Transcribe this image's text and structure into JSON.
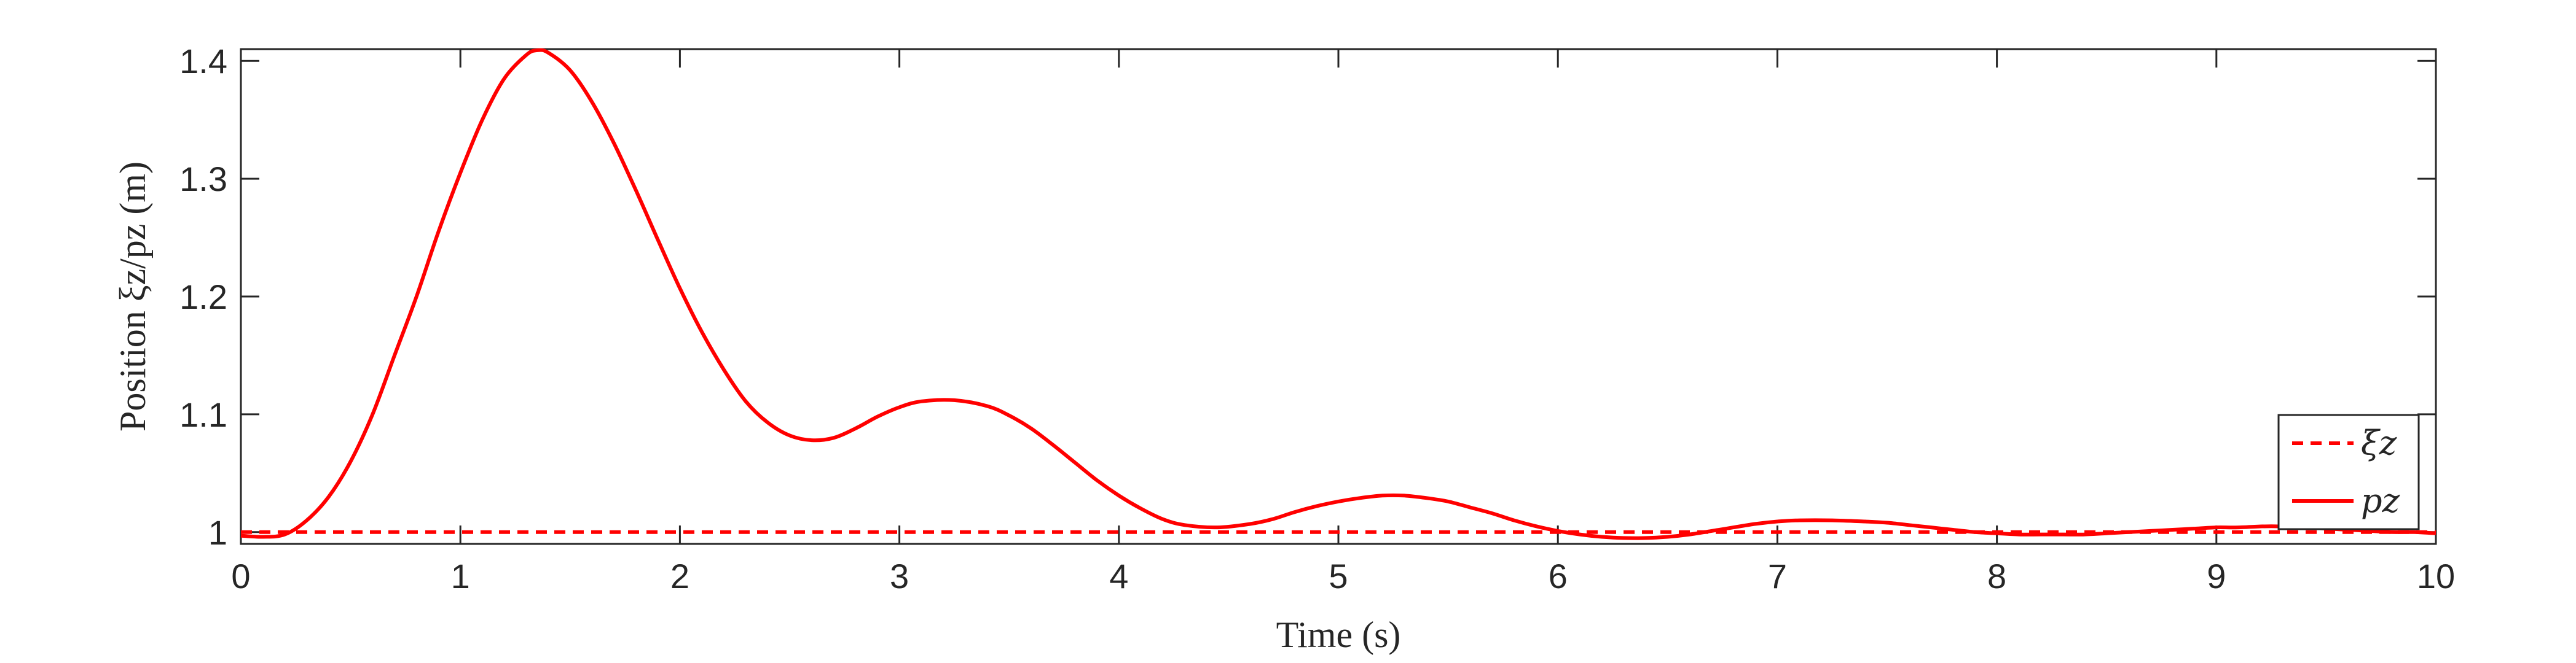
{
  "chart_data": {
    "type": "line",
    "xlabel": "Time (s)",
    "ylabel": "Position ξz/pz (m)",
    "xlim": [
      0,
      10
    ],
    "ylim": [
      0.99,
      1.41
    ],
    "xticks": [
      "0",
      "1",
      "2",
      "3",
      "4",
      "5",
      "6",
      "7",
      "8",
      "9",
      "10"
    ],
    "yticks": [
      "1",
      "1.1",
      "1.2",
      "1.3",
      "1.4"
    ],
    "grid": false,
    "legend_position": "bottom-right",
    "series": [
      {
        "name": "ξz",
        "style": "dashed",
        "color": "#ff0000",
        "x": [
          0,
          10
        ],
        "y": [
          1.0,
          1.0
        ]
      },
      {
        "name": "pz",
        "style": "solid",
        "color": "#ff0000",
        "x": [
          0,
          0.1,
          0.2,
          0.3,
          0.4,
          0.5,
          0.6,
          0.7,
          0.8,
          0.9,
          1.0,
          1.1,
          1.2,
          1.3,
          1.35,
          1.4,
          1.5,
          1.6,
          1.7,
          1.8,
          1.9,
          2.0,
          2.1,
          2.2,
          2.3,
          2.4,
          2.5,
          2.6,
          2.7,
          2.8,
          2.9,
          3.0,
          3.1,
          3.25,
          3.4,
          3.5,
          3.6,
          3.7,
          3.8,
          3.9,
          4.0,
          4.1,
          4.2,
          4.3,
          4.45,
          4.6,
          4.7,
          4.8,
          4.9,
          5.0,
          5.1,
          5.2,
          5.3,
          5.4,
          5.5,
          5.6,
          5.7,
          5.8,
          5.9,
          6.0,
          6.1,
          6.2,
          6.3,
          6.4,
          6.5,
          6.6,
          6.7,
          6.8,
          6.9,
          7.0,
          7.1,
          7.25,
          7.4,
          7.5,
          7.6,
          7.7,
          7.8,
          7.9,
          8.0,
          8.1,
          8.2,
          8.3,
          8.4,
          8.5,
          8.6,
          8.7,
          8.8,
          8.9,
          9.0,
          9.1,
          9.25,
          9.4,
          9.5,
          9.6,
          9.7,
          9.8,
          9.9,
          10.0
        ],
        "y": [
          0.997,
          0.996,
          0.998,
          1.01,
          1.03,
          1.06,
          1.1,
          1.15,
          1.2,
          1.255,
          1.305,
          1.35,
          1.385,
          1.405,
          1.409,
          1.407,
          1.392,
          1.365,
          1.33,
          1.29,
          1.248,
          1.207,
          1.17,
          1.138,
          1.111,
          1.093,
          1.082,
          1.078,
          1.08,
          1.088,
          1.098,
          1.106,
          1.111,
          1.112,
          1.107,
          1.099,
          1.088,
          1.074,
          1.059,
          1.044,
          1.031,
          1.02,
          1.011,
          1.006,
          1.004,
          1.007,
          1.011,
          1.017,
          1.022,
          1.026,
          1.029,
          1.031,
          1.031,
          1.029,
          1.026,
          1.021,
          1.016,
          1.01,
          1.005,
          1.001,
          0.998,
          0.996,
          0.995,
          0.995,
          0.996,
          0.998,
          1.001,
          1.004,
          1.007,
          1.009,
          1.01,
          1.01,
          1.009,
          1.008,
          1.006,
          1.004,
          1.002,
          1.0,
          0.999,
          0.998,
          0.998,
          0.998,
          0.998,
          0.999,
          1.0,
          1.001,
          1.002,
          1.003,
          1.004,
          1.004,
          1.005,
          1.004,
          1.003,
          1.002,
          1.001,
          1.0,
          1.0,
          0.999
        ]
      }
    ]
  }
}
